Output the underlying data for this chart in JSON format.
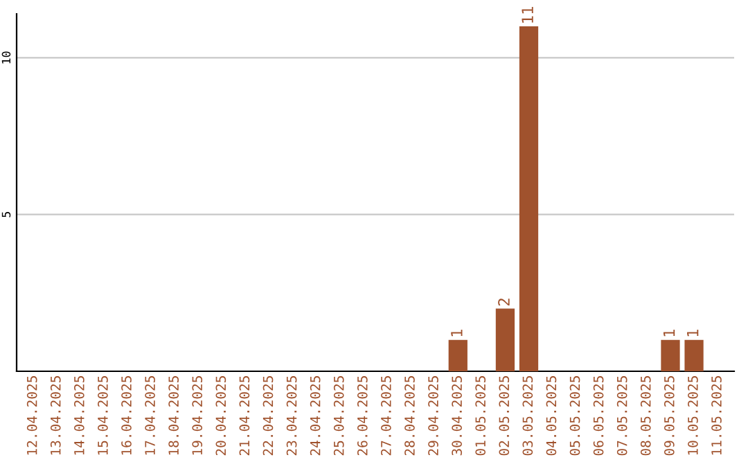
{
  "chart_data": {
    "type": "bar",
    "categories": [
      "12.04.2025",
      "13.04.2025",
      "14.04.2025",
      "15.04.2025",
      "16.04.2025",
      "17.04.2025",
      "18.04.2025",
      "19.04.2025",
      "20.04.2025",
      "21.04.2025",
      "22.04.2025",
      "23.04.2025",
      "24.04.2025",
      "25.04.2025",
      "26.04.2025",
      "27.04.2025",
      "28.04.2025",
      "29.04.2025",
      "30.04.2025",
      "01.05.2025",
      "02.05.2025",
      "03.05.2025",
      "04.05.2025",
      "05.05.2025",
      "06.05.2025",
      "07.05.2025",
      "08.05.2025",
      "09.05.2025",
      "10.05.2025",
      "11.05.2025"
    ],
    "values": [
      0,
      0,
      0,
      0,
      0,
      0,
      0,
      0,
      0,
      0,
      0,
      0,
      0,
      0,
      0,
      0,
      0,
      0,
      1,
      0,
      2,
      11,
      0,
      0,
      0,
      0,
      0,
      1,
      1,
      0
    ],
    "value_labels": [
      null,
      null,
      null,
      null,
      null,
      null,
      null,
      null,
      null,
      null,
      null,
      null,
      null,
      null,
      null,
      null,
      null,
      null,
      "1",
      null,
      "2",
      "11",
      null,
      null,
      null,
      null,
      null,
      "1",
      "1",
      null
    ],
    "color": "#a0522d",
    "ylim": [
      0,
      11.4
    ],
    "yticks": [
      5,
      10
    ],
    "grid": "y",
    "legend": false
  }
}
